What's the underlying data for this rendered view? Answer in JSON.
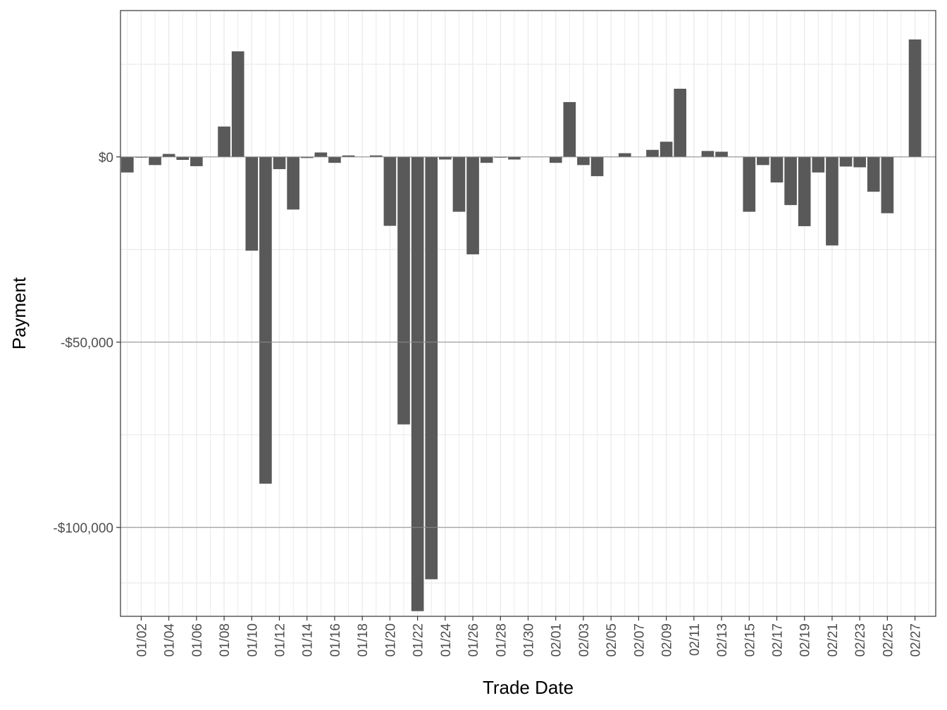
{
  "chart_data": {
    "type": "bar",
    "title": "",
    "xlabel": "Trade Date",
    "ylabel": "Payment",
    "ylim": [
      -124000,
      39500
    ],
    "y_ticks": [
      {
        "value": 0,
        "label": "$0"
      },
      {
        "value": -50000,
        "label": "-$50,000"
      },
      {
        "value": -100000,
        "label": "-$100,000"
      }
    ],
    "x_tick_labels": [
      "01/02",
      "01/04",
      "01/06",
      "01/08",
      "01/10",
      "01/12",
      "01/14",
      "01/16",
      "01/18",
      "01/20",
      "01/22",
      "01/24",
      "01/26",
      "01/28",
      "01/30",
      "02/01",
      "02/03",
      "02/05",
      "02/07",
      "02/09",
      "02/11",
      "02/13",
      "02/15",
      "02/17",
      "02/19",
      "02/21",
      "02/23",
      "02/25",
      "02/27"
    ],
    "categories": [
      "01/01",
      "01/02",
      "01/03",
      "01/04",
      "01/05",
      "01/06",
      "01/07",
      "01/08",
      "01/09",
      "01/10",
      "01/11",
      "01/12",
      "01/13",
      "01/14",
      "01/15",
      "01/16",
      "01/17",
      "01/18",
      "01/19",
      "01/20",
      "01/21",
      "01/22",
      "01/23",
      "01/24",
      "01/25",
      "01/26",
      "01/27",
      "01/28",
      "01/29",
      "01/30",
      "01/31",
      "02/01",
      "02/02",
      "02/03",
      "02/04",
      "02/05",
      "02/06",
      "02/07",
      "02/08",
      "02/09",
      "02/10",
      "02/11",
      "02/12",
      "02/13",
      "02/14",
      "02/15",
      "02/16",
      "02/17",
      "02/18",
      "02/19",
      "02/20",
      "02/21",
      "02/22",
      "02/23",
      "02/24",
      "02/25",
      "02/26",
      "02/27",
      "02/28"
    ],
    "values": [
      -4200,
      -200,
      -2200,
      800,
      -800,
      -2500,
      0,
      8200,
      28500,
      -25300,
      -88200,
      -3300,
      -14200,
      -300,
      1200,
      -1600,
      400,
      0,
      400,
      -18600,
      -72200,
      -122600,
      -114000,
      -700,
      -14800,
      -26300,
      -1600,
      -200,
      -700,
      0,
      0,
      -1600,
      14800,
      -2200,
      -5200,
      0,
      1000,
      0,
      1900,
      4100,
      18400,
      0,
      1600,
      1400,
      0,
      -14800,
      -2200,
      -6900,
      -13000,
      -18700,
      -4200,
      -23900,
      -2600,
      -2800,
      -9400,
      -15200,
      0,
      31700,
      0
    ],
    "grid": true,
    "legend": "none",
    "colors": {
      "bar": "#595959",
      "grid_major": "#ebebeb",
      "grid_emph": "#8c8c8c",
      "panel_border": "#333333"
    }
  }
}
